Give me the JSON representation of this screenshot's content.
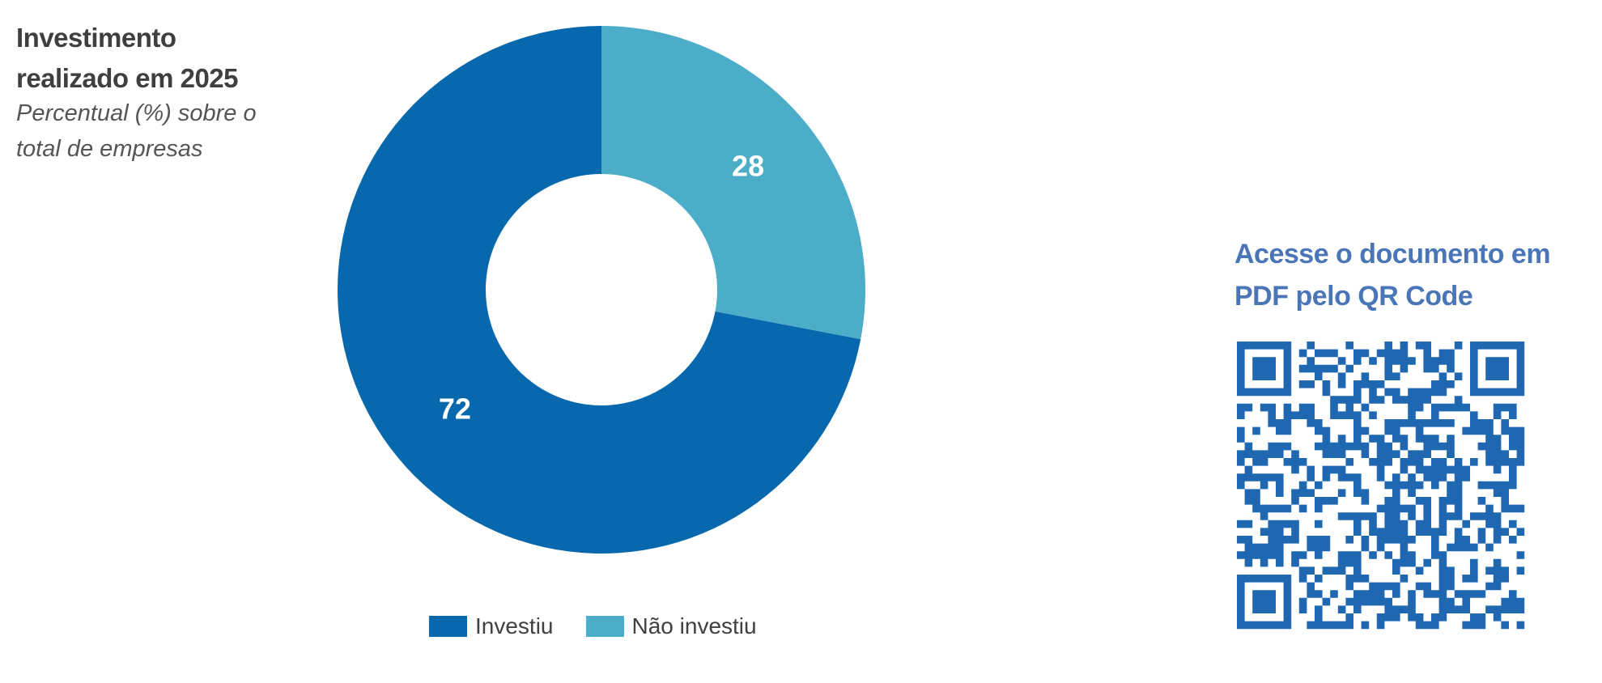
{
  "chart_data": {
    "type": "donut",
    "title": "Investimento realizado em 2025",
    "subtitle": "Percentual (%) sobre o total de empresas",
    "categories": [
      "Investiu",
      "Não investiu"
    ],
    "values": [
      72,
      28
    ],
    "colors": [
      "#0768ae",
      "#4badc8"
    ],
    "start_angle": 90,
    "counterclock": true,
    "legend": "bottom"
  },
  "qr_panel": {
    "text": "Acesse o documento em PDF pelo QR Code"
  }
}
